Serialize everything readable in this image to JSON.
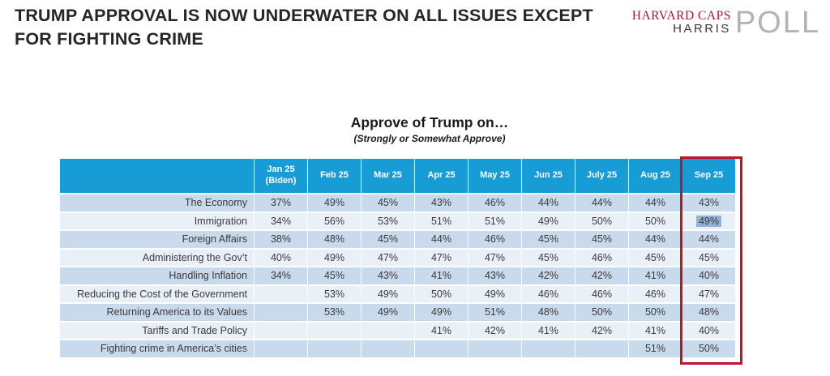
{
  "page": {
    "title": "TRUMP APPROVAL IS NOW UNDERWATER ON ALL ISSUES EXCEPT FOR FIGHTING CRIME"
  },
  "logo": {
    "line1": "HARVARD CAPS",
    "line2": "HARRIS",
    "word": "POLL"
  },
  "chart": {
    "title": "Approve of Trump on…",
    "subtitle": "(Strongly or Somewhat Approve)"
  },
  "table": {
    "header": [
      "Jan 25 (Biden)",
      "Feb 25",
      "Mar 25",
      "Apr 25",
      "May 25",
      "Jun 25",
      "July 25",
      "Aug 25",
      "Sep 25"
    ],
    "rows": [
      {
        "label": "The Economy",
        "values": [
          "37%",
          "49%",
          "45%",
          "43%",
          "46%",
          "44%",
          "44%",
          "44%",
          "43%"
        ]
      },
      {
        "label": "Immigration",
        "values": [
          "34%",
          "56%",
          "53%",
          "51%",
          "51%",
          "49%",
          "50%",
          "50%",
          "49%"
        ]
      },
      {
        "label": "Foreign Affairs",
        "values": [
          "38%",
          "48%",
          "45%",
          "44%",
          "46%",
          "45%",
          "45%",
          "44%",
          "44%"
        ]
      },
      {
        "label": "Administering the Gov’t",
        "values": [
          "40%",
          "49%",
          "47%",
          "47%",
          "47%",
          "45%",
          "46%",
          "45%",
          "45%"
        ]
      },
      {
        "label": "Handling Inflation",
        "values": [
          "34%",
          "45%",
          "43%",
          "41%",
          "43%",
          "42%",
          "42%",
          "41%",
          "40%"
        ]
      },
      {
        "label": "Reducing the Cost of the Government",
        "values": [
          "",
          "53%",
          "49%",
          "50%",
          "49%",
          "46%",
          "46%",
          "46%",
          "47%"
        ]
      },
      {
        "label": "Returning America to its Values",
        "values": [
          "",
          "53%",
          "49%",
          "49%",
          "51%",
          "48%",
          "50%",
          "50%",
          "48%"
        ]
      },
      {
        "label": "Tariffs and Trade Policy",
        "values": [
          "",
          "",
          "",
          "41%",
          "42%",
          "41%",
          "42%",
          "41%",
          "40%"
        ]
      },
      {
        "label": "Fighting crime in America’s cities",
        "values": [
          "",
          "",
          "",
          "",
          "",
          "",
          "",
          "51%",
          "50%"
        ]
      }
    ]
  },
  "chart_data": {
    "type": "table",
    "title": "Approve of Trump on…",
    "subtitle": "(Strongly or Somewhat Approve)",
    "unit": "%",
    "columns": [
      "Jan 25 (Biden)",
      "Feb 25",
      "Mar 25",
      "Apr 25",
      "May 25",
      "Jun 25",
      "July 25",
      "Aug 25",
      "Sep 25"
    ],
    "rows": [
      {
        "label": "The Economy",
        "values": [
          37,
          49,
          45,
          43,
          46,
          44,
          44,
          44,
          43
        ]
      },
      {
        "label": "Immigration",
        "values": [
          34,
          56,
          53,
          51,
          51,
          49,
          50,
          50,
          49
        ]
      },
      {
        "label": "Foreign Affairs",
        "values": [
          38,
          48,
          45,
          44,
          46,
          45,
          45,
          44,
          44
        ]
      },
      {
        "label": "Administering the Gov’t",
        "values": [
          40,
          49,
          47,
          47,
          47,
          45,
          46,
          45,
          45
        ]
      },
      {
        "label": "Handling Inflation",
        "values": [
          34,
          45,
          43,
          41,
          43,
          42,
          42,
          41,
          40
        ]
      },
      {
        "label": "Reducing the Cost of the Government",
        "values": [
          null,
          53,
          49,
          50,
          49,
          46,
          46,
          46,
          47
        ]
      },
      {
        "label": "Returning America to its Values",
        "values": [
          null,
          53,
          49,
          49,
          51,
          48,
          50,
          50,
          48
        ]
      },
      {
        "label": "Tariffs and Trade Policy",
        "values": [
          null,
          null,
          null,
          41,
          42,
          41,
          42,
          41,
          40
        ]
      },
      {
        "label": "Fighting crime in America’s cities",
        "values": [
          null,
          null,
          null,
          null,
          null,
          null,
          null,
          51,
          50
        ]
      }
    ],
    "highlighted_column": "Sep 25",
    "highlighted_cell": {
      "row": "Immigration",
      "column": "Sep 25",
      "value": 49
    }
  },
  "colors": {
    "header_blue": "#189CD6",
    "row_shaded": "#C9DAEC",
    "row_light": "#E9F0F8",
    "highlight_border_red": "#C8102E",
    "cell_selection_blue": "#94B2D6",
    "brand_red": "#9E1B32",
    "brand_gray": "#B1B4B6",
    "text_dark": "#262626"
  }
}
